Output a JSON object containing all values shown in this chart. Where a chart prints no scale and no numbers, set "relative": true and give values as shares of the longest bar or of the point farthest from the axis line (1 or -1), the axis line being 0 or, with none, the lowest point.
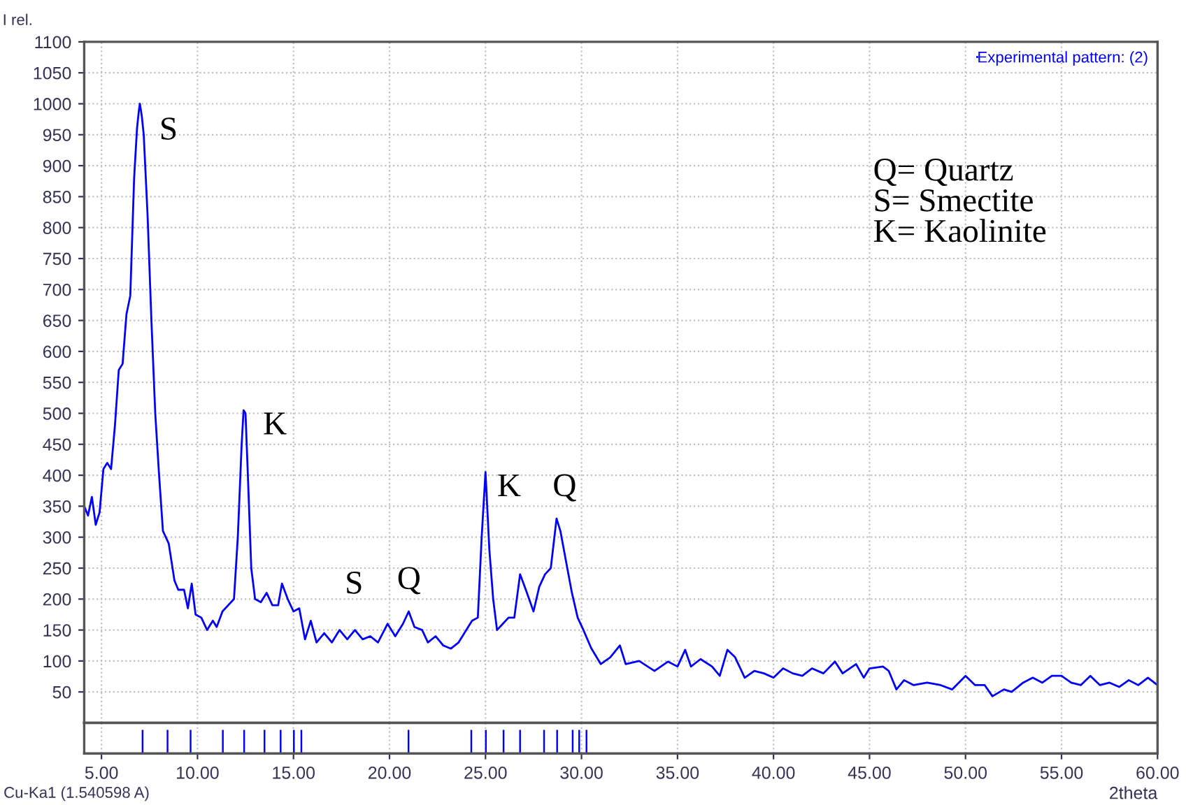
{
  "chart_data": [
    {
      "type": "line",
      "ylabel": "I rel.",
      "xlim": [
        4.1,
        60
      ],
      "ylim": [
        0,
        1100
      ],
      "xticks": [
        {
          "value": 5,
          "label": null
        },
        {
          "value": 10,
          "label": null
        },
        {
          "value": 15,
          "label": null
        },
        {
          "value": 20,
          "label": null
        },
        {
          "value": 25,
          "label": null
        },
        {
          "value": 30,
          "label": null
        },
        {
          "value": 35,
          "label": null
        },
        {
          "value": 40,
          "label": null
        },
        {
          "value": 45,
          "label": null
        },
        {
          "value": 50,
          "label": null
        },
        {
          "value": 55,
          "label": null
        },
        {
          "value": 60,
          "label": null
        }
      ],
      "yticks": [
        50,
        100,
        150,
        200,
        250,
        300,
        350,
        400,
        450,
        500,
        550,
        600,
        650,
        700,
        750,
        800,
        850,
        900,
        950,
        1000,
        1050,
        1100
      ],
      "tick_labels": "y",
      "grid": true,
      "legend": "top right",
      "line_style": "solid",
      "marker": "none",
      "series": [
        {
          "name": "Experimental pattern: (2)",
          "color": "#0000ff",
          "x": [
            4.1,
            4.3,
            4.5,
            4.7,
            4.9,
            5.1,
            5.3,
            5.5,
            5.7,
            5.9,
            6.1,
            6.3,
            6.5,
            6.7,
            6.85,
            6.95,
            7.0,
            7.1,
            7.2,
            7.4,
            7.6,
            7.8,
            8.0,
            8.2,
            8.5,
            8.8,
            9.0,
            9.3,
            9.5,
            9.7,
            9.9,
            10.2,
            10.5,
            10.8,
            11.0,
            11.3,
            11.6,
            11.9,
            12.1,
            12.3,
            12.4,
            12.5,
            12.6,
            12.8,
            13.0,
            13.3,
            13.6,
            13.9,
            14.2,
            14.4,
            14.7,
            15.0,
            15.3,
            15.6,
            15.9,
            16.2,
            16.6,
            17.0,
            17.4,
            17.8,
            18.2,
            18.6,
            19.0,
            19.4,
            19.9,
            20.3,
            20.7,
            21.0,
            21.3,
            21.7,
            22.0,
            22.4,
            22.8,
            23.2,
            23.6,
            24.0,
            24.3,
            24.6,
            24.8,
            25.0,
            25.2,
            25.4,
            25.6,
            25.9,
            26.2,
            26.5,
            26.8,
            27.1,
            27.5,
            27.8,
            28.1,
            28.4,
            28.7,
            28.9,
            29.2,
            29.5,
            29.8,
            30.1,
            30.5,
            31.0,
            31.5,
            32.0,
            32.3,
            33.0,
            33.8,
            34.5,
            35.0,
            35.4,
            35.7,
            36.2,
            36.8,
            37.2,
            37.6,
            38.0,
            38.5,
            39.0,
            39.5,
            40.0,
            40.5,
            41.0,
            41.5,
            42.0,
            42.6,
            43.2,
            43.6,
            44.3,
            44.7,
            45.0,
            45.7,
            46.0,
            46.4,
            46.8,
            47.3,
            48.0,
            48.7,
            49.3,
            50.0,
            50.5,
            51.0,
            51.4,
            52.0,
            52.4,
            53.0,
            53.5,
            54.0,
            54.5,
            55.0,
            55.5,
            56.0,
            56.5,
            57.0,
            57.5,
            58.0,
            58.5,
            59.0,
            59.5,
            60.0
          ],
          "values": [
            350,
            335,
            365,
            320,
            340,
            410,
            420,
            410,
            480,
            570,
            580,
            660,
            690,
            880,
            960,
            990,
            1000,
            980,
            950,
            820,
            650,
            500,
            400,
            310,
            290,
            230,
            215,
            215,
            185,
            225,
            175,
            170,
            150,
            165,
            155,
            180,
            190,
            200,
            300,
            450,
            505,
            500,
            420,
            250,
            200,
            195,
            210,
            190,
            190,
            225,
            200,
            180,
            185,
            135,
            165,
            130,
            145,
            130,
            150,
            135,
            150,
            135,
            140,
            130,
            160,
            140,
            160,
            180,
            155,
            150,
            130,
            140,
            125,
            120,
            130,
            150,
            165,
            170,
            300,
            405,
            280,
            200,
            150,
            160,
            170,
            170,
            240,
            215,
            180,
            220,
            240,
            250,
            330,
            310,
            260,
            210,
            170,
            150,
            121,
            95,
            106,
            125,
            95,
            100,
            84,
            99,
            91,
            118,
            91,
            103,
            91,
            76,
            118,
            106,
            73,
            84,
            80,
            73,
            88,
            80,
            76,
            88,
            80,
            99,
            80,
            95,
            73,
            88,
            91,
            84,
            54,
            69,
            61,
            65,
            61,
            54,
            76,
            61,
            61,
            43,
            54,
            50,
            65,
            73,
            65,
            76,
            76,
            65,
            61,
            76,
            61,
            65,
            58,
            69,
            61,
            73,
            61
          ]
        }
      ],
      "annotations": [
        {
          "text": "S",
          "x": 7.0,
          "y": 1000
        },
        {
          "text": "K",
          "x": 12.4,
          "y": 505
        },
        {
          "text": "S",
          "x": 19.9,
          "y": 160
        },
        {
          "text": "Q",
          "x": 21.0,
          "y": 180
        },
        {
          "text": "K",
          "x": 25.0,
          "y": 405
        },
        {
          "text": "Q",
          "x": 28.7,
          "y": 330
        },
        "Q= Quartz",
        "S= Smectite",
        "K= Kaolinite"
      ]
    },
    {
      "type": "bar",
      "relative": true,
      "xlabel": "2theta",
      "color": "#0000ff",
      "xlim": [
        4.1,
        60
      ],
      "xticks": [
        {
          "value": 5,
          "label": "5.00"
        },
        {
          "value": 10,
          "label": "10.00"
        },
        {
          "value": 15,
          "label": "15.00"
        },
        {
          "value": 20,
          "label": "20.00"
        },
        {
          "value": 25,
          "label": "25.00"
        },
        {
          "value": 30,
          "label": "30.00"
        },
        {
          "value": 35,
          "label": "35.00"
        },
        {
          "value": 40,
          "label": "40.00"
        },
        {
          "value": 45,
          "label": "45.00"
        },
        {
          "value": 50,
          "label": "50.00"
        },
        {
          "value": 55,
          "label": "55.00"
        },
        {
          "value": 60,
          "label": "60.00"
        }
      ],
      "tick_labels": "x",
      "grid": "x",
      "x": [
        7.14,
        8.44,
        9.64,
        11.32,
        12.43,
        13.49,
        14.33,
        15.02,
        15.41,
        20.99,
        24.26,
        25.02,
        25.94,
        26.8,
        28.05,
        28.73,
        29.54,
        29.88,
        30.26
      ],
      "values": [
        1,
        1,
        1,
        1,
        1,
        1,
        1,
        1,
        1,
        1,
        1,
        1,
        1,
        1,
        1,
        1,
        1,
        1,
        1
      ],
      "annotations": [
        "Cu-Ka1 (1.540598 A)"
      ]
    }
  ]
}
